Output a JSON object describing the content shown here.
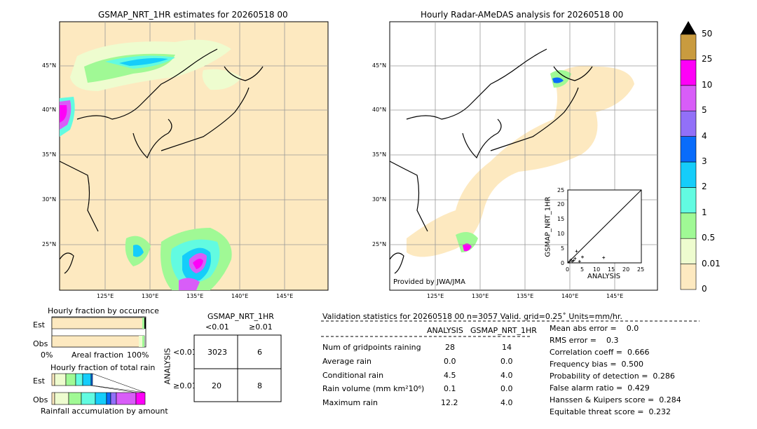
{
  "left_map": {
    "title": "GSMAP_NRT_1HR estimates for 20260518 00",
    "lat_labels": [
      "45°N",
      "40°N",
      "35°N",
      "30°N",
      "25°N"
    ],
    "lon_labels": [
      "125°E",
      "130°E",
      "135°E",
      "140°E",
      "145°E"
    ]
  },
  "right_map": {
    "title": "Hourly Radar-AMeDAS analysis for 20260518 00",
    "lat_labels": [
      "45°N",
      "40°N",
      "35°N",
      "30°N",
      "25°N"
    ],
    "lon_labels": [
      "125°E",
      "130°E",
      "135°E",
      "140°E",
      "145°E"
    ],
    "provider": "Provided by JWA/JMA"
  },
  "colorbar": {
    "labels": [
      "0",
      "0.01",
      "0.5",
      "1",
      "2",
      "3",
      "4",
      "5",
      "10",
      "25",
      "50"
    ],
    "colors": [
      "#fde9c0",
      "#eefccf",
      "#a0f995",
      "#62fbe1",
      "#15cdfa",
      "#096cfb",
      "#9270f8",
      "#d85df8",
      "#fe00f7",
      "#c99b3f",
      "#000000"
    ]
  },
  "scatter": {
    "xlabel": "ANALYSIS",
    "ylabel": "GSMAP_NRT_1HR",
    "ticks": [
      "0",
      "5",
      "10",
      "15",
      "20",
      "25"
    ]
  },
  "occurrence": {
    "title": "Hourly fraction by occurence",
    "rows": [
      "Est",
      "Obs"
    ],
    "axis_left": "0%",
    "axis_mid": "Areal fraction",
    "axis_right": "100%"
  },
  "total_rain": {
    "title": "Hourly fraction of total rain",
    "rows": [
      "Est",
      "Obs"
    ],
    "footer": "Rainfall accumulation by amount"
  },
  "contingency": {
    "title": "GSMAP_NRT_1HR",
    "col_lt": "<0.01",
    "col_ge": "≥0.01",
    "row_axis": "ANALYSIS",
    "row_lt": "<0.01",
    "row_ge": "≥0.01",
    "cells": [
      "3023",
      "6",
      "20",
      "8"
    ]
  },
  "validation": {
    "header": "Validation statistics for 20260518 00  n=3057 Valid. grid=0.25˚ Units=mm/hr.",
    "col_analysis": "ANALYSIS",
    "col_gsmap": "GSMAP_NRT_1HR",
    "rows": [
      {
        "label": "Num of gridpoints raining",
        "analysis": "28",
        "gsmap": "14"
      },
      {
        "label": "Average rain",
        "analysis": "0.0",
        "gsmap": "0.0"
      },
      {
        "label": "Conditional rain",
        "analysis": "4.5",
        "gsmap": "4.0"
      },
      {
        "label": "Rain volume (mm km²10⁶)",
        "analysis": "0.1",
        "gsmap": "0.0"
      },
      {
        "label": "Maximum rain",
        "analysis": "12.2",
        "gsmap": "4.0"
      }
    ],
    "scores": [
      "Mean abs error =    0.0",
      "RMS error =    0.3",
      "Correlation coeff =  0.666",
      "Frequency bias =  0.500",
      "Probability of detection =  0.286",
      "False alarm ratio =  0.429",
      "Hanssen & Kuipers score =  0.284",
      "Equitable threat score =  0.232"
    ]
  },
  "chart_data": [
    {
      "type": "scatter",
      "title": "",
      "xlabel": "ANALYSIS",
      "ylabel": "GSMAP_NRT_1HR",
      "xlim": [
        0,
        25
      ],
      "ylim": [
        0,
        25
      ],
      "x": [
        0.5,
        1,
        1.5,
        2,
        2.5,
        3,
        4,
        5,
        12.2
      ],
      "y": [
        0.3,
        1,
        0.5,
        0.8,
        1.5,
        4,
        0.5,
        2,
        1.8
      ]
    },
    {
      "type": "bar",
      "title": "Hourly fraction by occurence",
      "categories": [
        "Est",
        "Obs"
      ],
      "series": [
        {
          "name": "",
          "values": [
            0.985,
            0.985
          ]
        }
      ]
    }
  ]
}
